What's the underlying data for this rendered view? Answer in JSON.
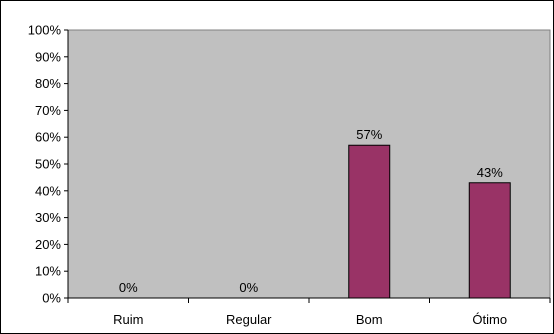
{
  "chart_data": {
    "type": "bar",
    "categories": [
      "Ruim",
      "Regular",
      "Bom",
      "Ótimo"
    ],
    "values": [
      0,
      0,
      57,
      43
    ],
    "data_labels": [
      "0%",
      "0%",
      "57%",
      "43%"
    ],
    "y_tick_labels": [
      "0%",
      "10%",
      "20%",
      "30%",
      "40%",
      "50%",
      "60%",
      "70%",
      "80%",
      "90%",
      "100%"
    ],
    "ylim": [
      0,
      100
    ],
    "y_unit": "%",
    "grid": false,
    "title": "",
    "xlabel": "",
    "ylabel": "",
    "colors": {
      "bar": "#993366",
      "plot_area": "#c0c0c0",
      "border": "#000000",
      "background": "#ffffff"
    }
  }
}
